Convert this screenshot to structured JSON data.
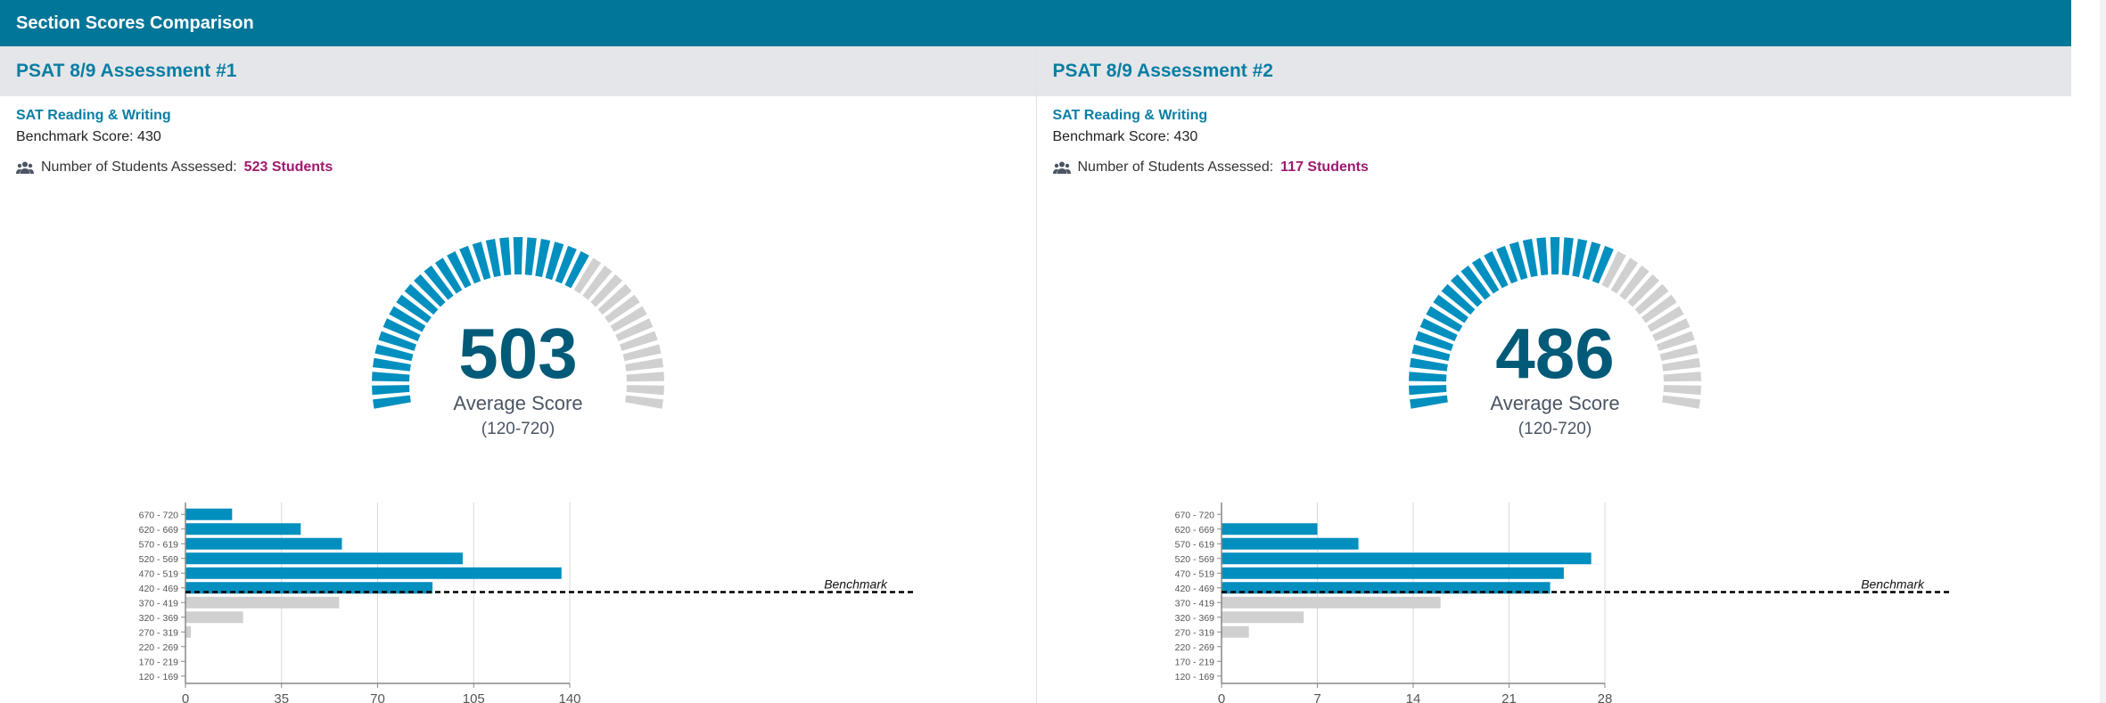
{
  "header": {
    "title": "Section Scores Comparison"
  },
  "colors": {
    "header": "#027699",
    "accent": "#0a7ea4",
    "bar_above": "#008fbf",
    "bar_below": "#d0d0d0",
    "gauge_number": "#005a78",
    "students": "#a0186e"
  },
  "panels": [
    {
      "title": "PSAT 8/9 Assessment #1",
      "section": "SAT Reading & Writing",
      "benchmark_text": "Benchmark Score: 430",
      "students_label": "Number of Students Assessed:",
      "students_count": "523 Students",
      "icon": "users-icon",
      "gauge": {
        "value": "503",
        "label": "Average Score",
        "range": "(120-720)",
        "min": 120,
        "max": 720,
        "score": 503
      }
    },
    {
      "title": "PSAT 8/9 Assessment #2",
      "section": "SAT Reading & Writing",
      "benchmark_text": "Benchmark Score: 430",
      "students_label": "Number of Students Assessed:",
      "students_count": "117 Students",
      "icon": "users-icon",
      "gauge": {
        "value": "486",
        "label": "Average Score",
        "range": "(120-720)",
        "min": 120,
        "max": 720,
        "score": 486
      }
    }
  ],
  "chart_data": [
    {
      "type": "bar",
      "orientation": "horizontal",
      "categories": [
        "670 - 720",
        "620 - 669",
        "570 - 619",
        "520 - 569",
        "470 - 519",
        "420 - 469",
        "370 - 419",
        "320 - 369",
        "270 - 319",
        "220 - 269",
        "170 - 219",
        "120 - 169"
      ],
      "values": [
        17,
        42,
        57,
        101,
        137,
        90,
        56,
        21,
        2,
        0,
        0,
        0
      ],
      "xlim": [
        0,
        140
      ],
      "xticks": [
        "0",
        "35",
        "70",
        "105",
        "140"
      ],
      "grid": true,
      "benchmark": {
        "label": "Benchmark",
        "score": 430
      },
      "above_benchmark_bins": 6
    },
    {
      "type": "bar",
      "orientation": "horizontal",
      "categories": [
        "670 - 720",
        "620 - 669",
        "570 - 619",
        "520 - 569",
        "470 - 519",
        "420 - 469",
        "370 - 419",
        "320 - 369",
        "270 - 319",
        "220 - 269",
        "170 - 219",
        "120 - 169"
      ],
      "values": [
        0,
        7,
        10,
        27,
        25,
        24,
        16,
        6,
        2,
        0,
        0,
        0
      ],
      "xlim": [
        0,
        28
      ],
      "xticks": [
        "0",
        "7",
        "14",
        "21",
        "28"
      ],
      "grid": true,
      "benchmark": {
        "label": "Benchmark",
        "score": 430
      },
      "above_benchmark_bins": 6
    }
  ]
}
